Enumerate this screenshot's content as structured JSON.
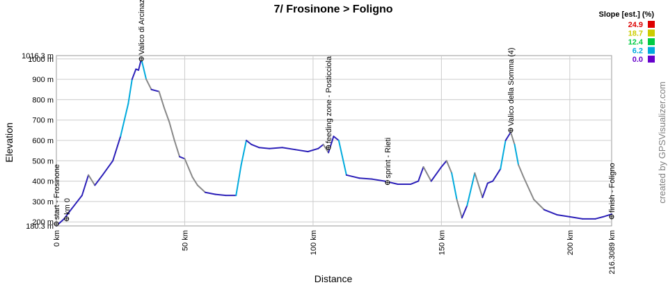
{
  "chart_data": {
    "type": "line",
    "title": "7/ Frosinone > Foligno",
    "xlabel": "Distance",
    "ylabel": "Elevation",
    "x_unit": "km",
    "y_unit": "m",
    "xlim": [
      0,
      216.3089
    ],
    "ylim": [
      180.3,
      1016.3
    ],
    "x_ticks": [
      0,
      50,
      100,
      150,
      200
    ],
    "x_tick_labels": [
      "0 km",
      "50 km",
      "100 km",
      "150 km",
      "200 km"
    ],
    "x_end_label": "216.3089 km",
    "y_ticks": [
      200,
      300,
      400,
      500,
      600,
      700,
      800,
      900,
      1000
    ],
    "y_tick_labels": [
      "200 m",
      "300 m",
      "400 m",
      "500 m",
      "600 m",
      "700 m",
      "800 m",
      "900 m",
      "1000 m"
    ],
    "y_min_label": "180.3 m",
    "y_max_label": "1016.3 m",
    "grid": true,
    "legend": {
      "title": "Slope [est.] (%)",
      "position": "top-right",
      "items": [
        {
          "label": "24.9",
          "color": "#dd0000"
        },
        {
          "label": "18.7",
          "color": "#cccc00"
        },
        {
          "label": "12.4",
          "color": "#00cc44"
        },
        {
          "label": "6.2",
          "color": "#00aadd"
        },
        {
          "label": "0.0",
          "color": "#6600cc"
        }
      ]
    },
    "profile": {
      "x": [
        0,
        3,
        6,
        10,
        12.5,
        15,
        18,
        22,
        25,
        28,
        29.5,
        31,
        32,
        33.1,
        35,
        37,
        40,
        42,
        44,
        46,
        48,
        50,
        53,
        55,
        58,
        62,
        66,
        70,
        72,
        74,
        76,
        79,
        83,
        88,
        93,
        98,
        102,
        104,
        106,
        108,
        110,
        113,
        118,
        123,
        128,
        133,
        138,
        141,
        143,
        146,
        150,
        152,
        154,
        156,
        158,
        160,
        163,
        166,
        168,
        170,
        173,
        175,
        177,
        178.5,
        180,
        182,
        186,
        190,
        195,
        200,
        205,
        210,
        213,
        216.3
      ],
      "y": [
        180.3,
        215,
        265,
        330,
        430,
        380,
        430,
        500,
        620,
        780,
        900,
        950,
        945,
        1000,
        900,
        850,
        840,
        760,
        690,
        600,
        520,
        510,
        420,
        380,
        345,
        335,
        330,
        330,
        480,
        600,
        580,
        565,
        560,
        565,
        555,
        545,
        560,
        580,
        540,
        620,
        600,
        430,
        415,
        410,
        400,
        385,
        385,
        400,
        470,
        400,
        470,
        500,
        440,
        310,
        220,
        280,
        440,
        320,
        390,
        400,
        460,
        600,
        640,
        580,
        480,
        420,
        310,
        260,
        235,
        225,
        215,
        215,
        225,
        238
      ]
    },
    "waypoints": [
      {
        "name": "start - Frosinone",
        "x": 0,
        "y": 190
      },
      {
        "name": "km 0",
        "x": 4,
        "y": 215
      },
      {
        "name": "Valico di Arcinazzo",
        "x": 33.1,
        "y": 1000
      },
      {
        "name": "feeding zone - Posticciola",
        "x": 106,
        "y": 565
      },
      {
        "name": "sprint - Rieti",
        "x": 129,
        "y": 393
      },
      {
        "name": "Valico della Somma (4)",
        "x": 177,
        "y": 650
      },
      {
        "name": "finish - Foligno",
        "x": 216.3,
        "y": 225
      }
    ]
  },
  "credit": "created by GPSVisualizer.com"
}
